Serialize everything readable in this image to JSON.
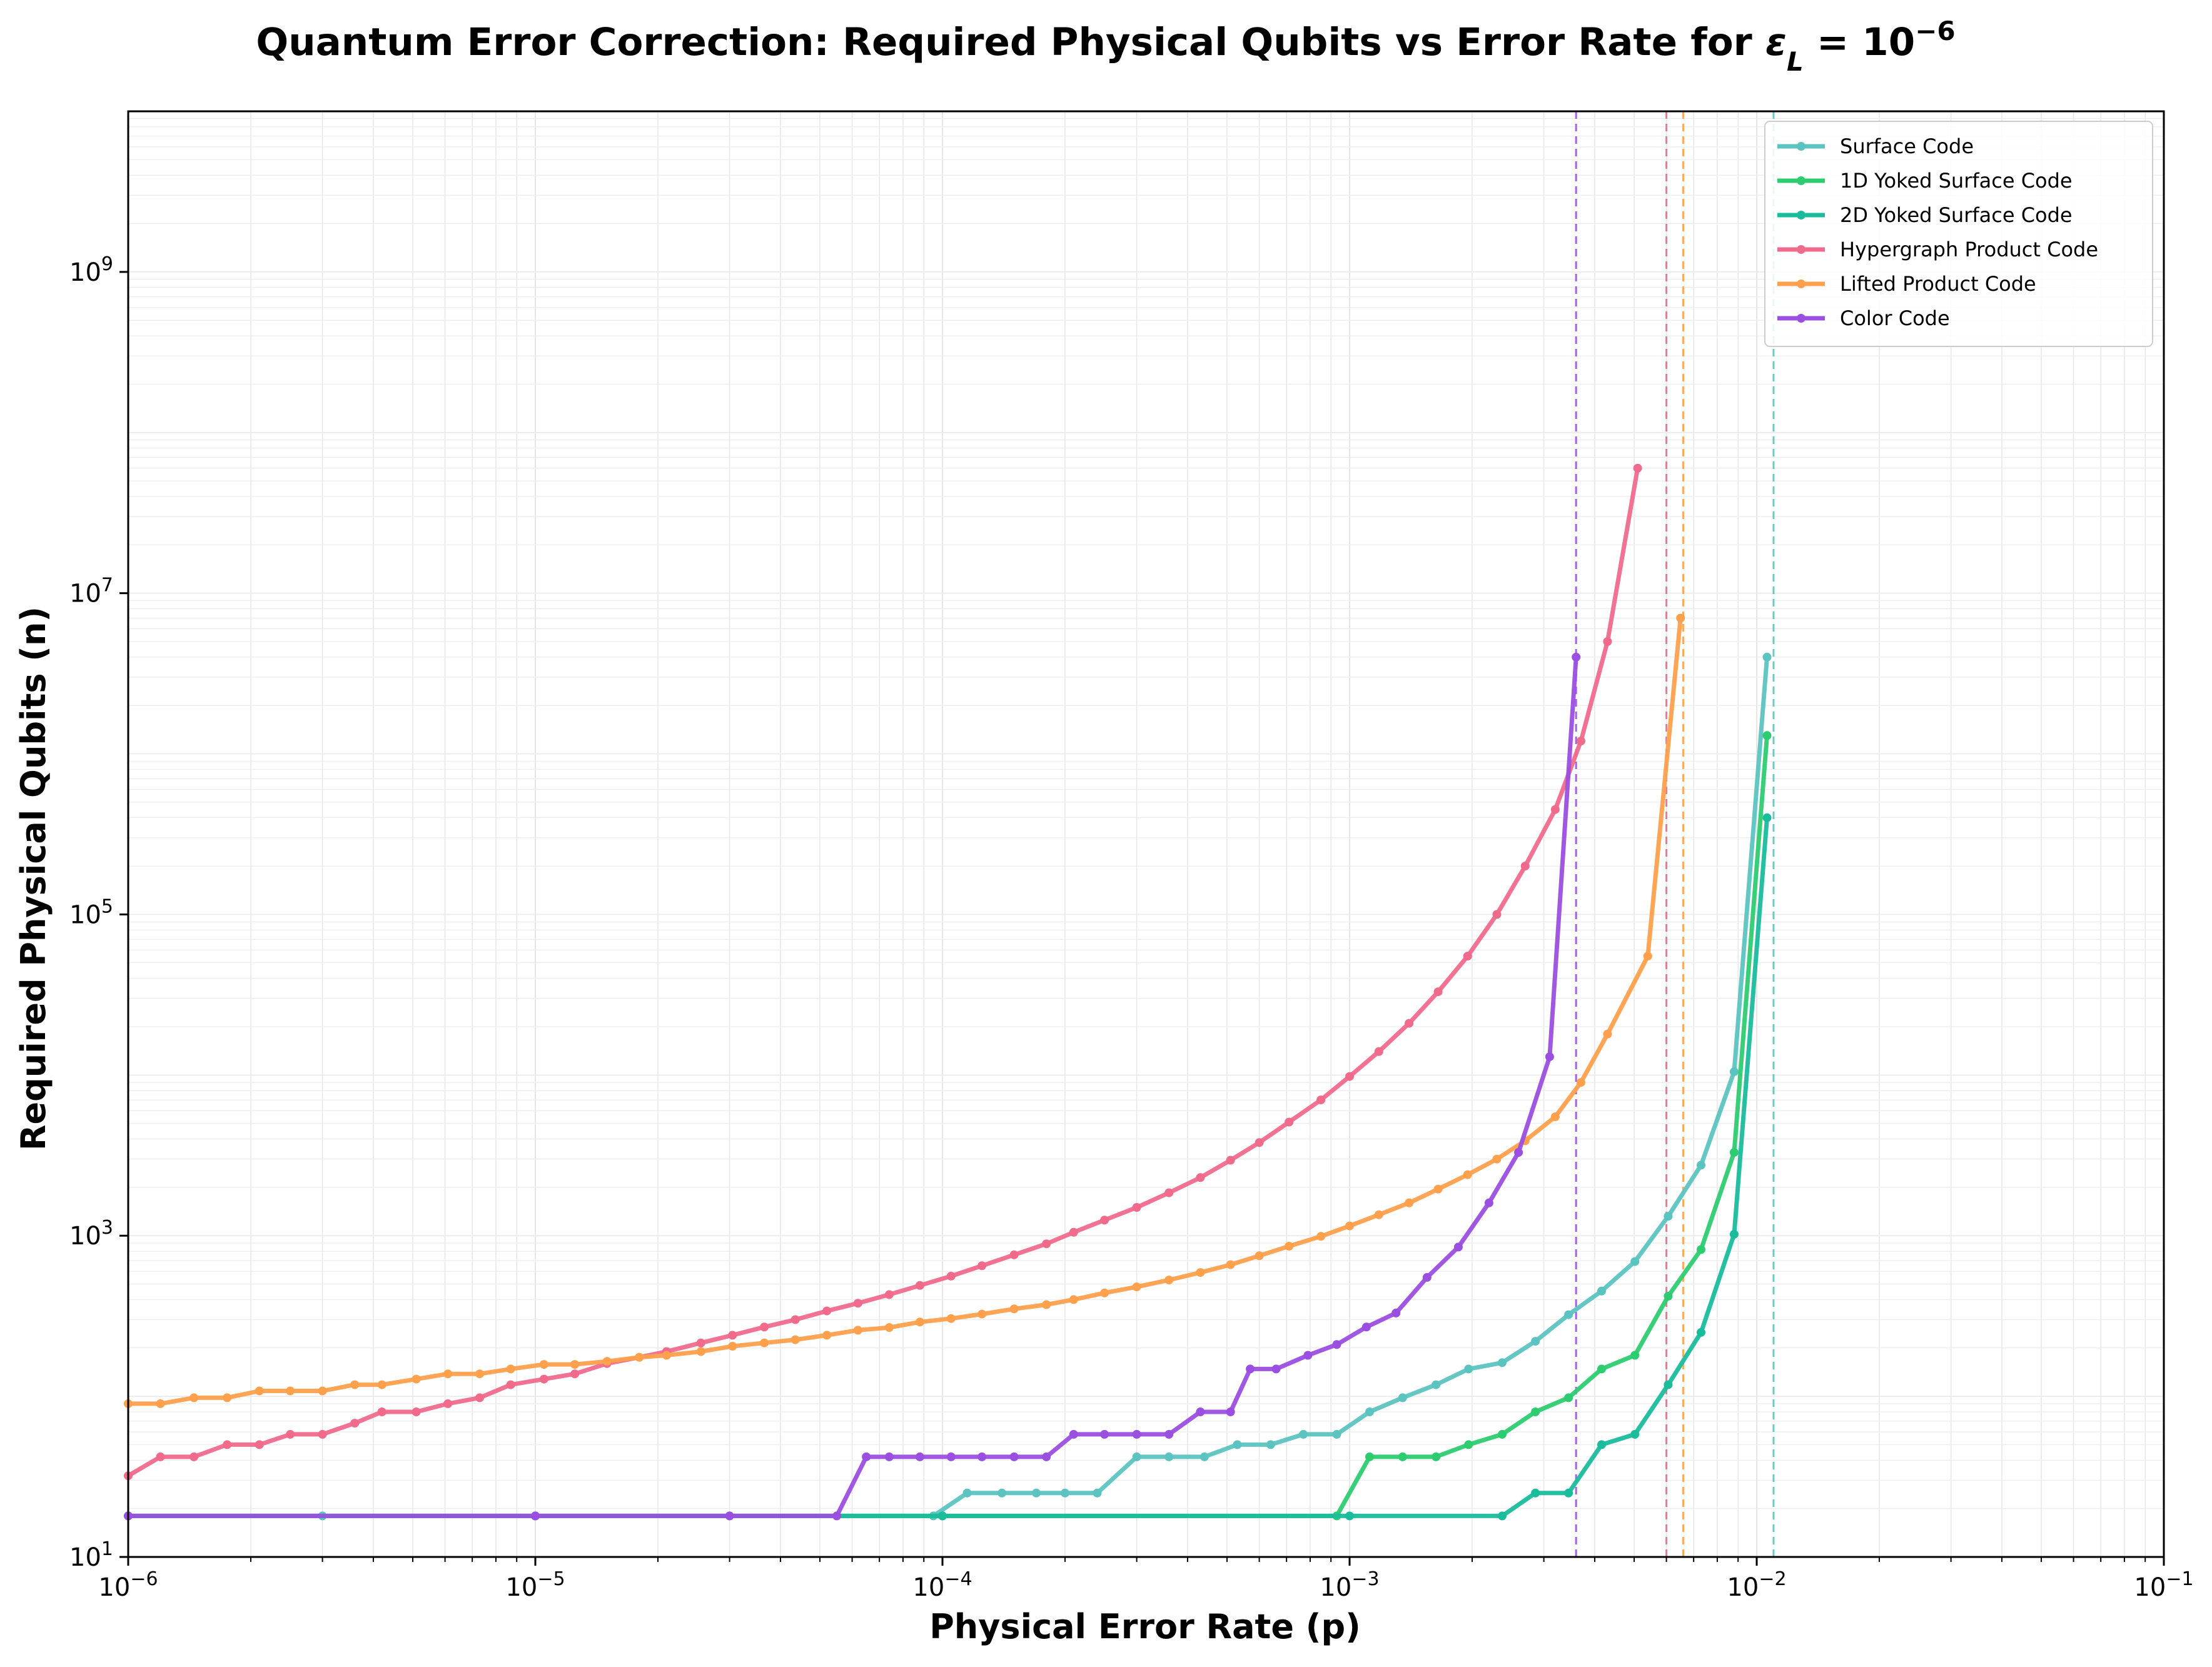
{
  "chart_data": {
    "type": "line",
    "title": "Quantum Error Correction: Required Physical Qubits vs Error Rate for ε_L = 10^-6",
    "title_parts": {
      "prefix": "Quantum Error Correction: Required Physical Qubits vs Error Rate for ",
      "symbol": "ε",
      "subscript": "L",
      "equals": " = 10",
      "exponent": "−6"
    },
    "xlabel": "Physical Error Rate (p)",
    "ylabel": "Required Physical Qubits (n)",
    "x_scale": "log",
    "y_scale": "log",
    "xlim": [
      1e-06,
      0.1
    ],
    "ylim": [
      10,
      10000000000
    ],
    "grid": true,
    "legend_position": "top-right",
    "x_ticks": [
      {
        "value": 1e-06,
        "base": "10",
        "exp": "−6"
      },
      {
        "value": 1e-05,
        "base": "10",
        "exp": "−5"
      },
      {
        "value": 0.0001,
        "base": "10",
        "exp": "−4"
      },
      {
        "value": 0.001,
        "base": "10",
        "exp": "−3"
      },
      {
        "value": 0.01,
        "base": "10",
        "exp": "−2"
      },
      {
        "value": 0.1,
        "base": "10",
        "exp": "−1"
      }
    ],
    "y_ticks": [
      {
        "value": 10,
        "base": "10",
        "exp": "1"
      },
      {
        "value": 1000,
        "base": "10",
        "exp": "3"
      },
      {
        "value": 100000,
        "base": "10",
        "exp": "5"
      },
      {
        "value": 10000000,
        "base": "10",
        "exp": "7"
      },
      {
        "value": 1000000000,
        "base": "10",
        "exp": "9"
      }
    ],
    "series": [
      {
        "name": "Surface Code",
        "color": "#5cc4c0",
        "threshold": 0.011,
        "points": [
          [
            1e-06,
            18
          ],
          [
            3e-06,
            18
          ],
          [
            1e-05,
            18
          ],
          [
            3e-05,
            18
          ],
          [
            9.5e-05,
            18
          ],
          [
            0.000115,
            25
          ],
          [
            0.00014,
            25
          ],
          [
            0.00017,
            25
          ],
          [
            0.0002,
            25
          ],
          [
            0.00024,
            25
          ],
          [
            0.0003,
            42
          ],
          [
            0.00036,
            42
          ],
          [
            0.00044,
            42
          ],
          [
            0.00053,
            50
          ],
          [
            0.00064,
            50
          ],
          [
            0.00077,
            58
          ],
          [
            0.00093,
            58
          ],
          [
            0.00112,
            80
          ],
          [
            0.00135,
            98
          ],
          [
            0.00163,
            118
          ],
          [
            0.00196,
            148
          ],
          [
            0.00237,
            162
          ],
          [
            0.00286,
            220
          ],
          [
            0.00345,
            322
          ],
          [
            0.00416,
            452
          ],
          [
            0.00502,
            690
          ],
          [
            0.00606,
            1320
          ],
          [
            0.0073,
            2750
          ],
          [
            0.0088,
            10500
          ],
          [
            0.0106,
            4000000
          ]
        ]
      },
      {
        "name": "1D Yoked Surface Code",
        "color": "#2ecc71",
        "threshold": 0.011,
        "points": [
          [
            1e-06,
            18
          ],
          [
            1e-05,
            18
          ],
          [
            0.0001,
            18
          ],
          [
            0.00093,
            18
          ],
          [
            0.00112,
            42
          ],
          [
            0.00135,
            42
          ],
          [
            0.00163,
            42
          ],
          [
            0.00196,
            50
          ],
          [
            0.00237,
            58
          ],
          [
            0.00286,
            80
          ],
          [
            0.00345,
            98
          ],
          [
            0.00416,
            148
          ],
          [
            0.00502,
            180
          ],
          [
            0.00606,
            420
          ],
          [
            0.0073,
            820
          ],
          [
            0.0088,
            3300
          ],
          [
            0.0106,
            1300000
          ]
        ]
      },
      {
        "name": "2D Yoked Surface Code",
        "color": "#1abc9c",
        "threshold": 0.011,
        "points": [
          [
            1e-06,
            18
          ],
          [
            1e-05,
            18
          ],
          [
            0.0001,
            18
          ],
          [
            0.001,
            18
          ],
          [
            0.00237,
            18
          ],
          [
            0.00286,
            25
          ],
          [
            0.00345,
            25
          ],
          [
            0.00416,
            50
          ],
          [
            0.00502,
            58
          ],
          [
            0.00606,
            118
          ],
          [
            0.0073,
            250
          ],
          [
            0.0088,
            1020
          ],
          [
            0.0106,
            400000
          ]
        ]
      },
      {
        "name": "Hypergraph Product Code",
        "color": "#f06a8c",
        "threshold": 0.006,
        "points": [
          [
            1e-06,
            32
          ],
          [
            1.2e-06,
            42
          ],
          [
            1.45e-06,
            42
          ],
          [
            1.75e-06,
            50
          ],
          [
            2.1e-06,
            50
          ],
          [
            2.5e-06,
            58
          ],
          [
            3e-06,
            58
          ],
          [
            3.6e-06,
            68
          ],
          [
            4.2e-06,
            80
          ],
          [
            5.1e-06,
            80
          ],
          [
            6.1e-06,
            90
          ],
          [
            7.3e-06,
            98
          ],
          [
            8.7e-06,
            118
          ],
          [
            1.05e-05,
            128
          ],
          [
            1.25e-05,
            138
          ],
          [
            1.5e-05,
            160
          ],
          [
            1.8e-05,
            175
          ],
          [
            2.1e-05,
            190
          ],
          [
            2.55e-05,
            215
          ],
          [
            3.05e-05,
            240
          ],
          [
            3.65e-05,
            270
          ],
          [
            4.35e-05,
            300
          ],
          [
            5.2e-05,
            340
          ],
          [
            6.2e-05,
            380
          ],
          [
            7.4e-05,
            430
          ],
          [
            8.8e-05,
            490
          ],
          [
            0.000105,
            560
          ],
          [
            0.000125,
            650
          ],
          [
            0.00015,
            760
          ],
          [
            0.00018,
            890
          ],
          [
            0.00021,
            1050
          ],
          [
            0.00025,
            1250
          ],
          [
            0.0003,
            1500
          ],
          [
            0.00036,
            1850
          ],
          [
            0.00043,
            2300
          ],
          [
            0.00051,
            2950
          ],
          [
            0.0006,
            3800
          ],
          [
            0.00071,
            5100
          ],
          [
            0.00085,
            7000
          ],
          [
            0.001,
            9800
          ],
          [
            0.00118,
            14000
          ],
          [
            0.0014,
            21000
          ],
          [
            0.00165,
            33000
          ],
          [
            0.00195,
            55000
          ],
          [
            0.0023,
            100000
          ],
          [
            0.0027,
            200000
          ],
          [
            0.0032,
            450000
          ],
          [
            0.0037,
            1200000
          ],
          [
            0.0043,
            5000000
          ],
          [
            0.0051,
            60000000
          ]
        ]
      },
      {
        "name": "Lifted Product Code",
        "color": "#ffa04c",
        "threshold": 0.0066,
        "points": [
          [
            1e-06,
            90
          ],
          [
            1.2e-06,
            90
          ],
          [
            1.45e-06,
            98
          ],
          [
            1.75e-06,
            98
          ],
          [
            2.1e-06,
            108
          ],
          [
            2.5e-06,
            108
          ],
          [
            3e-06,
            108
          ],
          [
            3.6e-06,
            118
          ],
          [
            4.2e-06,
            118
          ],
          [
            5.1e-06,
            128
          ],
          [
            6.1e-06,
            138
          ],
          [
            7.3e-06,
            138
          ],
          [
            8.7e-06,
            148
          ],
          [
            1.05e-05,
            158
          ],
          [
            1.25e-05,
            158
          ],
          [
            1.5e-05,
            165
          ],
          [
            1.8e-05,
            175
          ],
          [
            2.1e-05,
            180
          ],
          [
            2.55e-05,
            190
          ],
          [
            3.05e-05,
            205
          ],
          [
            3.65e-05,
            215
          ],
          [
            4.35e-05,
            225
          ],
          [
            5.2e-05,
            240
          ],
          [
            6.2e-05,
            258
          ],
          [
            7.4e-05,
            268
          ],
          [
            8.8e-05,
            290
          ],
          [
            0.000105,
            305
          ],
          [
            0.000125,
            325
          ],
          [
            0.00015,
            350
          ],
          [
            0.00018,
            372
          ],
          [
            0.00021,
            400
          ],
          [
            0.00025,
            440
          ],
          [
            0.0003,
            480
          ],
          [
            0.00036,
            530
          ],
          [
            0.00043,
            590
          ],
          [
            0.00051,
            660
          ],
          [
            0.0006,
            750
          ],
          [
            0.00071,
            860
          ],
          [
            0.00085,
            990
          ],
          [
            0.001,
            1150
          ],
          [
            0.00118,
            1350
          ],
          [
            0.0014,
            1600
          ],
          [
            0.00165,
            1950
          ],
          [
            0.00195,
            2400
          ],
          [
            0.0023,
            3000
          ],
          [
            0.0027,
            3900
          ],
          [
            0.0032,
            5500
          ],
          [
            0.0037,
            9000
          ],
          [
            0.0043,
            18000
          ],
          [
            0.0054,
            55000
          ],
          [
            0.0065,
            7000000
          ]
        ]
      },
      {
        "name": "Color Code",
        "color": "#9b4fe0",
        "threshold": 0.0036,
        "points": [
          [
            1e-06,
            18
          ],
          [
            1e-05,
            18
          ],
          [
            3e-05,
            18
          ],
          [
            5.5e-05,
            18
          ],
          [
            6.5e-05,
            42
          ],
          [
            7.4e-05,
            42
          ],
          [
            8.8e-05,
            42
          ],
          [
            0.000105,
            42
          ],
          [
            0.000125,
            42
          ],
          [
            0.00015,
            42
          ],
          [
            0.00018,
            42
          ],
          [
            0.00021,
            58
          ],
          [
            0.00025,
            58
          ],
          [
            0.0003,
            58
          ],
          [
            0.00036,
            58
          ],
          [
            0.00043,
            80
          ],
          [
            0.00051,
            80
          ],
          [
            0.00057,
            148
          ],
          [
            0.00066,
            148
          ],
          [
            0.00079,
            180
          ],
          [
            0.00093,
            210
          ],
          [
            0.0011,
            270
          ],
          [
            0.0013,
            330
          ],
          [
            0.00155,
            550
          ],
          [
            0.00185,
            850
          ],
          [
            0.0022,
            1600
          ],
          [
            0.0026,
            3300
          ],
          [
            0.0031,
            13000
          ],
          [
            0.0036,
            4000000
          ]
        ]
      }
    ]
  }
}
